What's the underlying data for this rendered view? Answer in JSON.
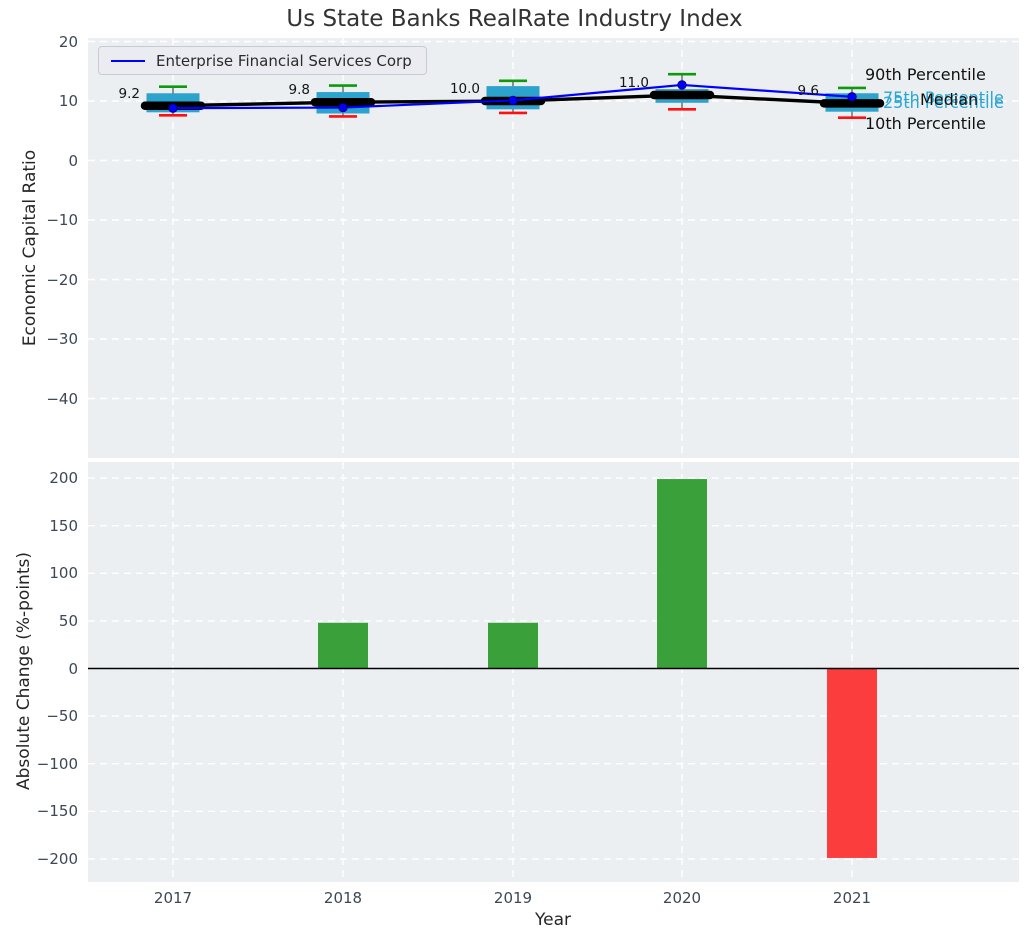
{
  "title": "Us State Banks RealRate Industry Index",
  "legend": {
    "label": "Enterprise Financial Services Corp"
  },
  "annotations": {
    "p90": "90th Percentile",
    "p75": "75th Percentile",
    "median": "Median",
    "p25": "25th Percentile",
    "p10": "10th Percentile"
  },
  "axes": {
    "top": {
      "ylabel": "Economic Capital Ratio",
      "yticks": [
        "20",
        "10",
        "0",
        "−10",
        "−20",
        "−30",
        "−40"
      ],
      "ytick_values": [
        20,
        10,
        0,
        -10,
        -20,
        -30,
        -40
      ]
    },
    "bottom": {
      "ylabel": "Absolute Change (%-points)",
      "xlabel": "Year",
      "yticks": [
        "200",
        "150",
        "100",
        "50",
        "0",
        "−50",
        "−100",
        "−150",
        "−200"
      ],
      "ytick_values": [
        200,
        150,
        100,
        50,
        0,
        -50,
        -100,
        -150,
        -200
      ],
      "xticks": [
        "2017",
        "2018",
        "2019",
        "2020",
        "2021"
      ]
    }
  },
  "colors": {
    "panel_bg": "#eceff1",
    "grid": "#ffffff",
    "box_fill": "#2ba3cd",
    "whisker_stem": "#4d4d4d",
    "cap_high": "#0a9c0a",
    "cap_low": "#ff0f0f",
    "median_line": "#000000",
    "company_line": "#0000ff",
    "company_marker_edge": "#00007a",
    "bar_positive": "#3aa03a",
    "bar_negative": "#fb3d3d",
    "zero_line": "#000000",
    "annotation_cyan": "#2aa7d4",
    "tick_color": "#3c4856",
    "title_color": "#333333"
  },
  "chart_data": [
    {
      "type": "boxplot+line",
      "panel": "top",
      "title": "Us State Banks RealRate Industry Index",
      "ylabel": "Economic Capital Ratio",
      "x": [
        2017,
        2018,
        2019,
        2020,
        2021
      ],
      "ylim": [
        -50.2,
        20.6
      ],
      "grid": true,
      "legend_position": "upper left",
      "series": [
        {
          "name": "10th Percentile",
          "values": [
            7.6,
            7.4,
            8.0,
            8.6,
            7.2
          ]
        },
        {
          "name": "25th Percentile",
          "values": [
            8.1,
            7.9,
            8.6,
            9.7,
            8.2
          ]
        },
        {
          "name": "Median",
          "values": [
            9.2,
            9.8,
            10.0,
            11.0,
            9.6
          ]
        },
        {
          "name": "75th Percentile",
          "values": [
            11.3,
            11.5,
            12.5,
            12.0,
            11.3
          ]
        },
        {
          "name": "90th Percentile",
          "values": [
            12.4,
            12.6,
            13.4,
            14.5,
            12.2
          ]
        },
        {
          "name": "Enterprise Financial Services Corp",
          "values": [
            8.8,
            8.9,
            10.1,
            12.7,
            10.7
          ]
        }
      ],
      "median_labels": [
        "9.2",
        "9.8",
        "10.0",
        "11.0",
        "9.6"
      ]
    },
    {
      "type": "bar",
      "panel": "bottom",
      "ylabel": "Absolute Change (%-points)",
      "xlabel": "Year",
      "categories": [
        2017,
        2018,
        2019,
        2020,
        2021
      ],
      "values": [
        null,
        48,
        48,
        199,
        -199
      ],
      "ylim": [
        -220,
        217
      ],
      "grid": true
    }
  ]
}
